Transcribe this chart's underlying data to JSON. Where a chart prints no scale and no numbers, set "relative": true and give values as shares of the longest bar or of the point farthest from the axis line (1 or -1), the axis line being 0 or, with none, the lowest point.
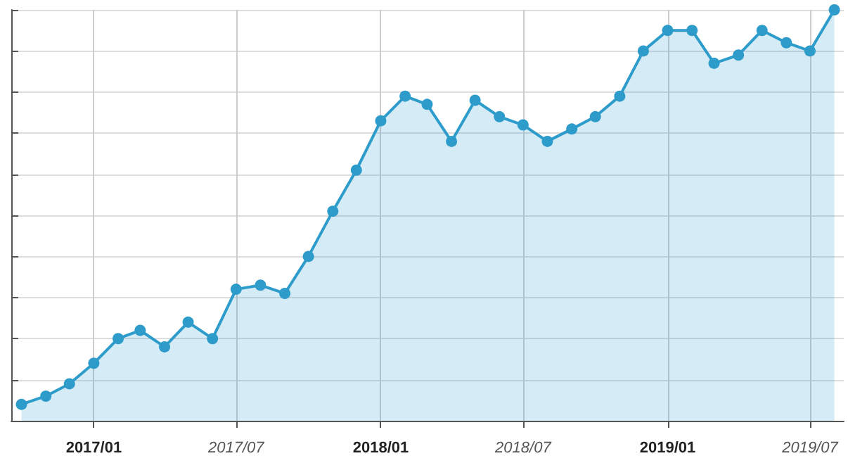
{
  "chart_data": {
    "type": "area",
    "relative": true,
    "x": [
      "2016-10",
      "2016-11",
      "2016-12",
      "2017-01",
      "2017-02",
      "2017-03",
      "2017-04",
      "2017-05",
      "2017-06",
      "2017-07",
      "2017-08",
      "2017-09",
      "2017-10",
      "2017-11",
      "2017-12",
      "2018-01",
      "2018-02",
      "2018-03",
      "2018-04",
      "2018-05",
      "2018-06",
      "2018-07",
      "2018-08",
      "2018-09",
      "2018-10",
      "2018-11",
      "2018-12",
      "2019-01",
      "2019-02",
      "2019-03",
      "2019-04",
      "2019-05",
      "2019-06",
      "2019-07",
      "2019-08"
    ],
    "xlim": [
      "2016-09-18",
      "2019-08-13"
    ],
    "xticks": [
      {
        "value": "2017-01",
        "label": "2017/01"
      },
      {
        "value": "2017-07",
        "label": "2017/07"
      },
      {
        "value": "2018-01",
        "label": "2018/01"
      },
      {
        "value": "2018-07",
        "label": "2018/07"
      },
      {
        "value": "2019-01",
        "label": "2019/01"
      },
      {
        "value": "2019-07",
        "label": "2019/07"
      }
    ],
    "series": [
      {
        "color": "#2e9ccb",
        "values": [
          0.04,
          0.06,
          0.09,
          0.14,
          0.2,
          0.22,
          0.18,
          0.24,
          0.2,
          0.32,
          0.33,
          0.31,
          0.4,
          0.51,
          0.61,
          0.73,
          0.79,
          0.77,
          0.68,
          0.78,
          0.74,
          0.72,
          0.68,
          0.71,
          0.74,
          0.79,
          0.9,
          0.95,
          0.95,
          0.87,
          0.89,
          0.95,
          0.92,
          0.9,
          1
        ]
      }
    ],
    "grid": true,
    "marker": "circle"
  }
}
